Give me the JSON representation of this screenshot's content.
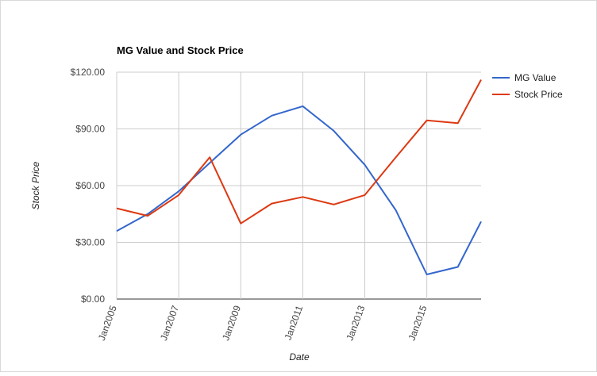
{
  "chart_data": {
    "type": "line",
    "title": "MG Value and Stock Price",
    "xlabel": "Date",
    "ylabel": "Stock Price",
    "x": [
      "2005-01",
      "2006-01",
      "2007-01",
      "2008-01",
      "2009-01",
      "2010-01",
      "2011-01",
      "2012-01",
      "2013-01",
      "2014-01",
      "2015-01",
      "2016-01",
      "2016-10"
    ],
    "x_tick_labels": [
      "Jan2005",
      "Jan2007",
      "Jan2009",
      "Jan2011",
      "Jan2013",
      "Jan2015"
    ],
    "x_tick_dates": [
      "2005-01",
      "2007-01",
      "2009-01",
      "2011-01",
      "2013-01",
      "2015-01"
    ],
    "y_tick_labels": [
      "$0.00",
      "$30.00",
      "$60.00",
      "$90.00",
      "$120.00"
    ],
    "y_tick_values": [
      0,
      30,
      60,
      90,
      120
    ],
    "ylim": [
      0,
      120
    ],
    "grid": true,
    "legend_position": "right",
    "series": [
      {
        "name": "MG Value",
        "color": "#3366cc",
        "values": [
          36,
          45,
          57,
          72,
          87,
          97,
          102,
          89,
          71,
          47,
          13,
          17,
          41
        ]
      },
      {
        "name": "Stock Price",
        "color": "#dc3912",
        "values": [
          48,
          44,
          55,
          75,
          40,
          50.5,
          54,
          50,
          55,
          75,
          94.5,
          93,
          116
        ]
      }
    ]
  }
}
